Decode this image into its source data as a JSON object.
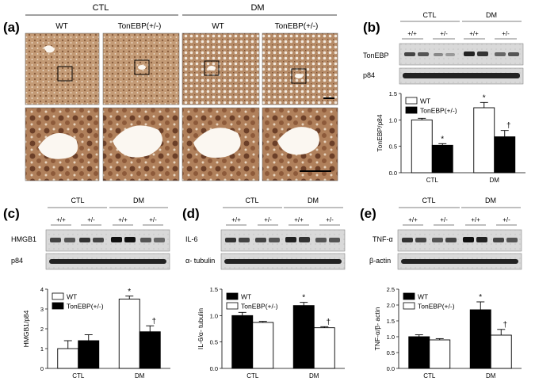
{
  "panel_a": {
    "letter": "(a)",
    "group_ctl": "CTL",
    "group_dm": "DM",
    "col_labels": [
      "WT",
      "TonEBP(+/-)",
      "WT",
      "TonEBP(+/-)"
    ]
  },
  "blot_genotypes": [
    "+/+",
    "+/-",
    "+/+",
    "+/-"
  ],
  "blot_ctl": "CTL",
  "blot_dm": "DM",
  "panel_b": {
    "letter": "(b)",
    "blot_labels": [
      "TonEBP",
      "p84"
    ]
  },
  "panel_c": {
    "letter": "(c)",
    "blot_labels": [
      "HMGB1",
      "p84"
    ]
  },
  "panel_d": {
    "letter": "(d)",
    "blot_labels": [
      "IL-6",
      "α- tubulin"
    ]
  },
  "panel_e": {
    "letter": "(e)",
    "blot_labels": [
      "TNF-α",
      "β-actin"
    ]
  },
  "chart_data": [
    {
      "panel": "b",
      "type": "bar",
      "categories": [
        "CTL",
        "DM"
      ],
      "ylabel": "TonEBP/p84",
      "ylim": [
        0,
        1.5
      ],
      "yticks": [
        "0.0",
        "0.5",
        "1.0",
        "1.5"
      ],
      "series": [
        {
          "name": "WT",
          "color": "#ffffff",
          "values": [
            1.0,
            1.23
          ],
          "errors": [
            0.03,
            0.1
          ],
          "marks": [
            "",
            "*"
          ]
        },
        {
          "name": "TonEBP(+/-)",
          "color": "#000000",
          "values": [
            0.52,
            0.68
          ],
          "errors": [
            0.03,
            0.12
          ],
          "marks": [
            "*",
            "†"
          ]
        }
      ],
      "legend": "top-left"
    },
    {
      "panel": "c",
      "type": "bar",
      "categories": [
        "CTL",
        "DM"
      ],
      "ylabel": "HMGB1/p84",
      "ylim": [
        0,
        4
      ],
      "yticks": [
        "0",
        "1",
        "2",
        "3",
        "4"
      ],
      "series": [
        {
          "name": "WT",
          "color": "#ffffff",
          "values": [
            1.0,
            3.5
          ],
          "errors": [
            0.4,
            0.15
          ],
          "marks": [
            "",
            "*"
          ]
        },
        {
          "name": "TonEBP(+/-)",
          "color": "#000000",
          "values": [
            1.4,
            1.85
          ],
          "errors": [
            0.3,
            0.3
          ],
          "marks": [
            "",
            "†"
          ]
        }
      ],
      "legend": "top-left"
    },
    {
      "panel": "d",
      "type": "bar",
      "categories": [
        "CTL",
        "DM"
      ],
      "ylabel": "IL-6/α- tubulin",
      "ylim": [
        0,
        1.5
      ],
      "yticks": [
        "0.0",
        "0.5",
        "1.0",
        "1.5"
      ],
      "series": [
        {
          "name": "WT",
          "color": "#000000",
          "values": [
            1.0,
            1.19
          ],
          "errors": [
            0.06,
            0.06
          ],
          "marks": [
            "",
            "*"
          ]
        },
        {
          "name": "TonEBP(+/-)",
          "color": "#ffffff",
          "values": [
            0.87,
            0.77
          ],
          "errors": [
            0.02,
            0.02
          ],
          "marks": [
            "",
            "†"
          ]
        }
      ],
      "legend": "top-left"
    },
    {
      "panel": "e",
      "type": "bar",
      "categories": [
        "CTL",
        "DM"
      ],
      "ylabel": "TNF-α/β- actin",
      "ylim": [
        0,
        2.5
      ],
      "yticks": [
        "0.0",
        "0.5",
        "1.0",
        "1.5",
        "2.0",
        "2.5"
      ],
      "series": [
        {
          "name": "WT",
          "color": "#000000",
          "values": [
            1.0,
            1.85
          ],
          "errors": [
            0.06,
            0.25
          ],
          "marks": [
            "",
            "*"
          ]
        },
        {
          "name": "TonEBP(+/-)",
          "color": "#ffffff",
          "values": [
            0.9,
            1.05
          ],
          "errors": [
            0.04,
            0.18
          ],
          "marks": [
            "",
            "†"
          ]
        }
      ],
      "legend": "top-left"
    }
  ]
}
